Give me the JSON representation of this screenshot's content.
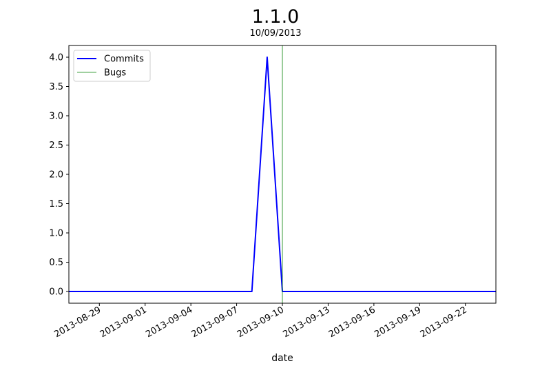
{
  "chart_data": {
    "type": "line",
    "title": "1.1.0",
    "subtitle": "10/09/2013",
    "xlabel": "date",
    "ylabel": "",
    "xlim": [
      "2013-08-27",
      "2013-09-24"
    ],
    "ylim": [
      -0.2,
      4.2
    ],
    "x_ticks": [
      "2013-08-29",
      "2013-09-01",
      "2013-09-04",
      "2013-09-07",
      "2013-09-10",
      "2013-09-13",
      "2013-09-16",
      "2013-09-19",
      "2013-09-22"
    ],
    "y_ticks": [
      0.0,
      0.5,
      1.0,
      1.5,
      2.0,
      2.5,
      3.0,
      3.5,
      4.0
    ],
    "y_tick_labels": [
      "0.0",
      "0.5",
      "1.0",
      "1.5",
      "2.0",
      "2.5",
      "3.0",
      "3.5",
      "4.0"
    ],
    "series": [
      {
        "name": "Commits",
        "color": "#0000ff",
        "x": [
          "2013-08-27",
          "2013-09-08",
          "2013-09-09",
          "2013-09-10",
          "2013-09-24"
        ],
        "y": [
          0,
          0,
          4,
          0,
          0
        ]
      }
    ],
    "vlines": [
      {
        "name": "Bugs",
        "color": "#008000",
        "x": "2013-09-10"
      }
    ],
    "legend": {
      "position": "top-left",
      "entries": [
        "Commits",
        "Bugs"
      ]
    },
    "grid": false
  }
}
